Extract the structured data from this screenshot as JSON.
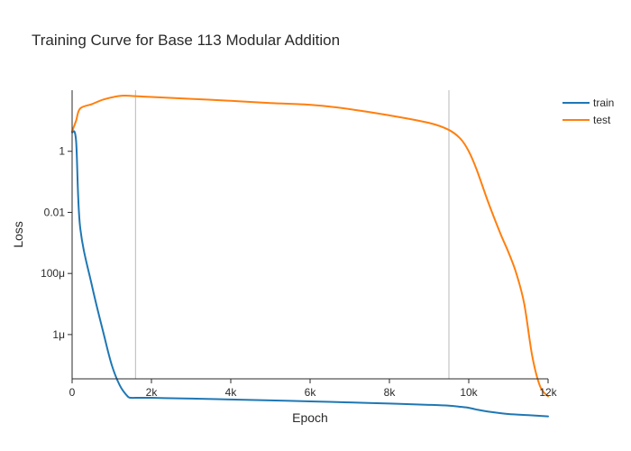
{
  "chart_data": {
    "type": "line",
    "title": "Training Curve for Base 113 Modular Addition",
    "xlabel": "Epoch",
    "ylabel": "Loss",
    "xlim": [
      0,
      12000
    ],
    "ylog": true,
    "ylim_log10": [
      -7.45,
      2.0
    ],
    "x_ticks": [
      {
        "value": 0,
        "label": "0"
      },
      {
        "value": 2000,
        "label": "2k"
      },
      {
        "value": 4000,
        "label": "4k"
      },
      {
        "value": 6000,
        "label": "6k"
      },
      {
        "value": 8000,
        "label": "8k"
      },
      {
        "value": 10000,
        "label": "10k"
      },
      {
        "value": 12000,
        "label": "12k"
      }
    ],
    "y_ticks": [
      {
        "value": 1,
        "label": "1"
      },
      {
        "value": 0.01,
        "label": "0.01"
      },
      {
        "value": 0.0001,
        "label": "100μ"
      },
      {
        "value": 1e-06,
        "label": "1μ"
      }
    ],
    "vlines": [
      1600,
      9500
    ],
    "grid": false,
    "legend_position": "top-right",
    "series": [
      {
        "name": "train",
        "color": "#1f77b4",
        "x": [
          0,
          100,
          200,
          500,
          800,
          1000,
          1200,
          1400,
          1500,
          1600,
          2000,
          2500,
          3000,
          4000,
          5000,
          6000,
          7000,
          8000,
          9000,
          9500,
          9800,
          10000,
          10200,
          10500,
          11000,
          11500,
          12000
        ],
        "y": [
          4.2,
          2.2,
          0.0035,
          4e-05,
          1e-06,
          1e-07,
          2.2e-08,
          9.5e-09,
          8.5e-09,
          8.5e-09,
          8.5e-09,
          8.2e-09,
          8e-09,
          7.5e-09,
          7e-09,
          6.5e-09,
          6e-09,
          5.5e-09,
          5e-09,
          4.7e-09,
          4.3e-09,
          4e-09,
          3.5e-09,
          3e-09,
          2.5e-09,
          2.3e-09,
          2.1e-09
        ]
      },
      {
        "name": "test",
        "color": "#ff7f0e",
        "x": [
          0,
          100,
          200,
          500,
          800,
          1200,
          1500,
          2000,
          3000,
          4000,
          5000,
          5900,
          6500,
          7000,
          8000,
          9000,
          9500,
          9800,
          10000,
          10200,
          10500,
          10800,
          11000,
          11200,
          11400,
          11600,
          11800,
          12000
        ],
        "y": [
          4.5,
          10,
          25,
          35,
          50,
          65,
          65,
          60,
          52,
          45,
          38,
          34,
          29,
          24,
          15,
          8.5,
          5,
          2.5,
          1.0,
          0.25,
          0.02,
          0.002,
          0.0005,
          0.0001,
          1e-05,
          2e-07,
          2e-08,
          9.5e-09
        ]
      }
    ]
  }
}
